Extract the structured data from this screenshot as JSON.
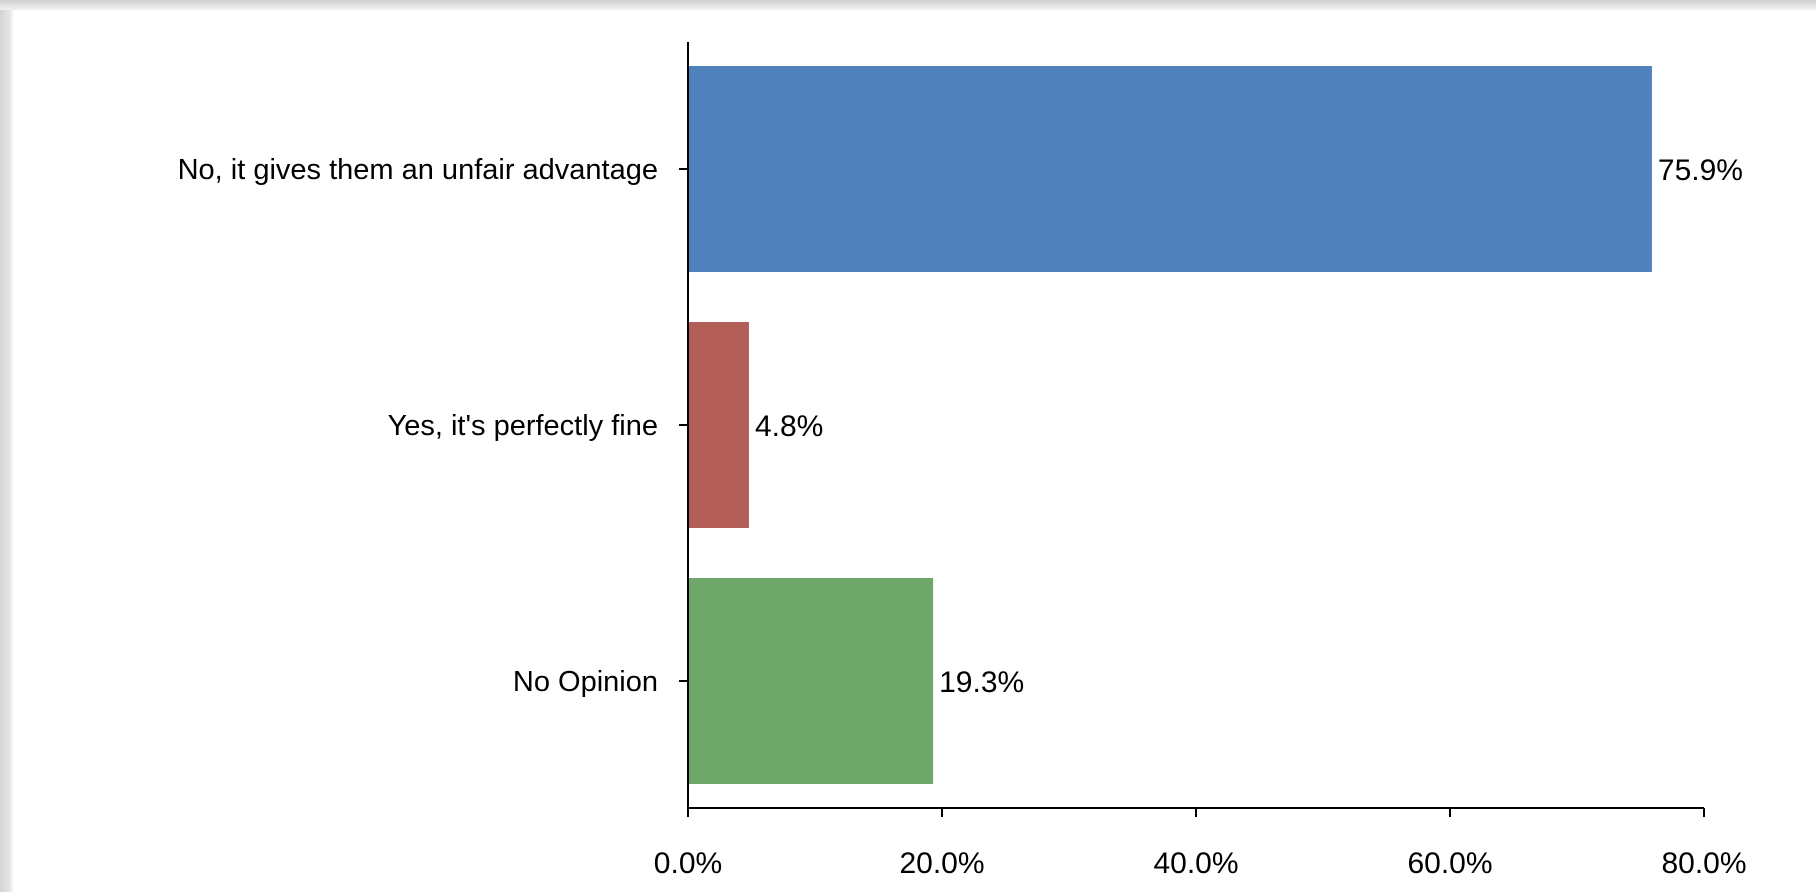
{
  "chart_data": {
    "type": "bar",
    "orientation": "horizontal",
    "categories": [
      "No, it gives them an unfair advantage",
      "Yes, it's perfectly fine",
      "No Opinion"
    ],
    "values": [
      75.9,
      4.8,
      19.3
    ],
    "value_labels": [
      "75.9%",
      "4.8%",
      "19.3%"
    ],
    "colors": [
      "#4f81bd",
      "#b35f57",
      "#6fa66a"
    ],
    "xlim": [
      0,
      80
    ],
    "x_ticks": [
      0,
      20,
      40,
      60,
      80
    ],
    "x_tick_labels": [
      "0.0%",
      "20.0%",
      "40.0%",
      "60.0%",
      "80.0%"
    ],
    "grid": false,
    "legend": "none"
  }
}
